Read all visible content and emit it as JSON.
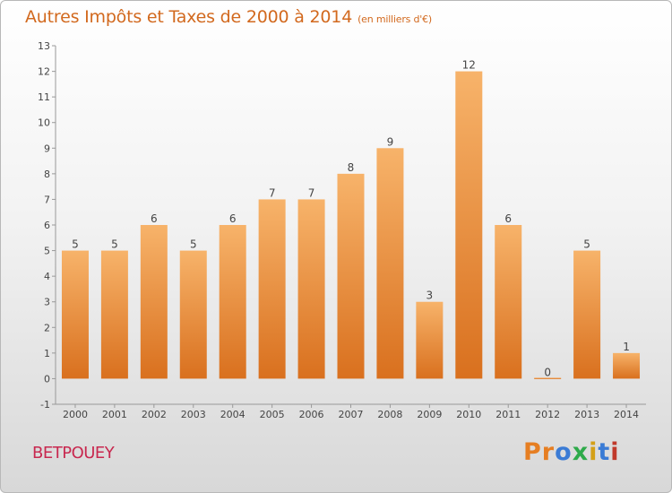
{
  "title": "Autres Impôts et Taxes de 2000 à 2014",
  "unit": "(en milliers d'€)",
  "commune": "BETPOUEY",
  "logo": {
    "text": "Proxiti",
    "letters": [
      "P",
      "r",
      "o",
      "x",
      "i",
      "t",
      "i"
    ],
    "colors": [
      "#e67e22",
      "#e67e22",
      "#3a7bd5",
      "#2eaa4a",
      "#d4a017",
      "#3a7bd5",
      "#c0392b"
    ]
  },
  "colors": {
    "bar": "#ee8c3a",
    "bar_light": "#f7b36a",
    "bar_dark": "#d9701e",
    "title": "#d2691e",
    "commune": "#c8284f"
  },
  "chart_data": {
    "type": "bar",
    "categories": [
      "2000",
      "2001",
      "2002",
      "2003",
      "2004",
      "2005",
      "2006",
      "2007",
      "2008",
      "2009",
      "2010",
      "2011",
      "2012",
      "2013",
      "2014"
    ],
    "values": [
      5,
      5,
      6,
      5,
      6,
      7,
      7,
      8,
      9,
      3,
      12,
      6,
      0,
      5,
      1
    ],
    "data_labels": [
      "5",
      "5",
      "6",
      "5",
      "6",
      "7",
      "7",
      "8",
      "9",
      "3",
      "12",
      "6",
      "0",
      "5",
      "1"
    ],
    "title": "Autres Impôts et Taxes de 2000 à 2014",
    "xlabel": "",
    "ylabel": "",
    "ylim": [
      -1,
      13
    ],
    "yticks": [
      -1,
      0,
      1,
      2,
      3,
      4,
      5,
      6,
      7,
      8,
      9,
      10,
      11,
      12,
      13
    ],
    "grid": false,
    "legend": "none"
  }
}
